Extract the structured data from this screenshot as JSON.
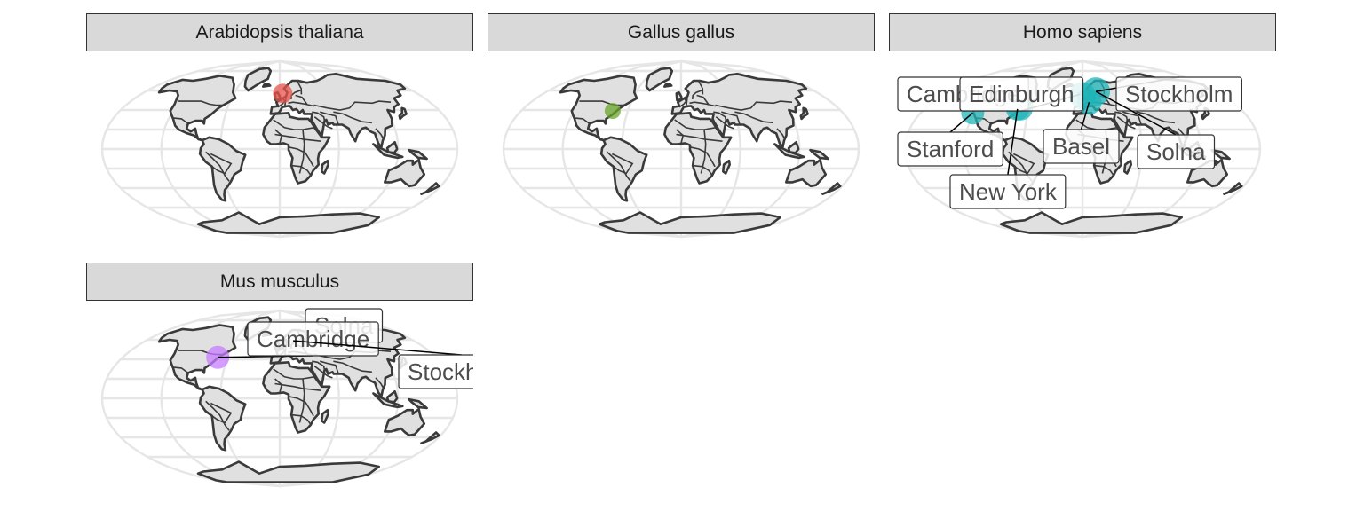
{
  "facets": [
    {
      "title": "Arabidopsis thaliana",
      "color": "#e8534a",
      "points": [
        {
          "lon": 4,
          "lat": 57,
          "r": 11
        }
      ],
      "labels": []
    },
    {
      "title": "Gallus gallus",
      "color": "#6aa62a",
      "points": [
        {
          "lon": -77,
          "lat": 39,
          "r": 9
        }
      ],
      "labels": []
    },
    {
      "title": "Homo sapiens",
      "color": "#1fb4b8",
      "points": [
        {
          "lon": -122,
          "lat": 37,
          "r": 13
        },
        {
          "lon": -71,
          "lat": 42,
          "r": 14
        },
        {
          "lon": -74,
          "lat": 41,
          "r": 13
        },
        {
          "lon": 8,
          "lat": 48,
          "r": 14
        },
        {
          "lon": 18,
          "lat": 59,
          "r": 16
        },
        {
          "lon": 0,
          "lat": 55,
          "r": 15
        }
      ],
      "labels": [
        {
          "text": "Cambridge",
          "lon": -71,
          "lat": 42
        },
        {
          "text": "Edinburgh",
          "lon": -3,
          "lat": 56
        },
        {
          "text": "Stockholm",
          "lon": 18,
          "lat": 59
        },
        {
          "text": "Stanford",
          "lon": -122,
          "lat": 37
        },
        {
          "text": "Basel",
          "lon": 8,
          "lat": 48
        },
        {
          "text": "Solna",
          "lon": 18,
          "lat": 59
        },
        {
          "text": "New York",
          "lon": -74,
          "lat": 41
        }
      ]
    },
    {
      "title": "Mus musculus",
      "color": "#c77cff",
      "points": [
        {
          "lon": -71,
          "lat": 42,
          "r": 13
        }
      ],
      "labels": [
        {
          "text": "Solna",
          "lon": 18,
          "lat": 59
        },
        {
          "text": "Cambridge",
          "lon": -71,
          "lat": 42
        },
        {
          "text": "Stockholm",
          "lon": 18,
          "lat": 59
        }
      ]
    }
  ]
}
